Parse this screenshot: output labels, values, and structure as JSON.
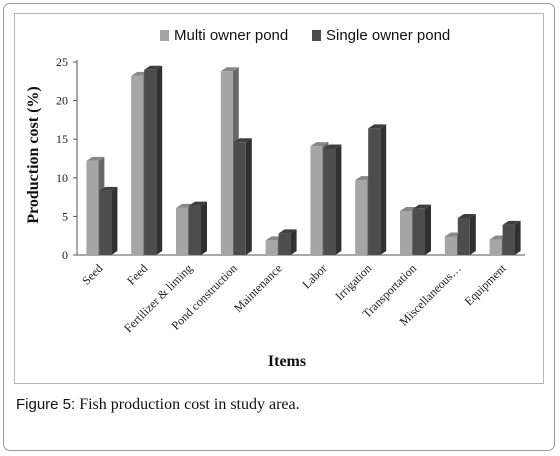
{
  "chart_data": {
    "type": "bar",
    "title": "",
    "xlabel": "Items",
    "ylabel": "Production  cost (%)",
    "ylim": [
      0,
      25
    ],
    "yticks": [
      0,
      5,
      10,
      15,
      20,
      25
    ],
    "grid": false,
    "legend_position": "top",
    "categories": [
      "Seed",
      "Feed",
      "Fertilizer & liming",
      "Pond construction",
      "Maintenance",
      "Labor",
      "Irrigation",
      "Transportation",
      "Miscellaneous…",
      "Equipment"
    ],
    "series": [
      {
        "name": "Multi owner pond",
        "color": "#a6a6a6",
        "values": [
          12.2,
          23.2,
          6.1,
          23.8,
          1.9,
          14.1,
          9.7,
          5.7,
          2.4,
          2.0
        ]
      },
      {
        "name": "Single owner pond",
        "color": "#4d4d4d",
        "values": [
          8.3,
          24.0,
          6.4,
          14.6,
          2.8,
          13.8,
          16.4,
          6.0,
          4.8,
          3.9
        ]
      }
    ]
  },
  "caption": {
    "label": "Figure 5:",
    "text": " Fish production cost in study area."
  }
}
